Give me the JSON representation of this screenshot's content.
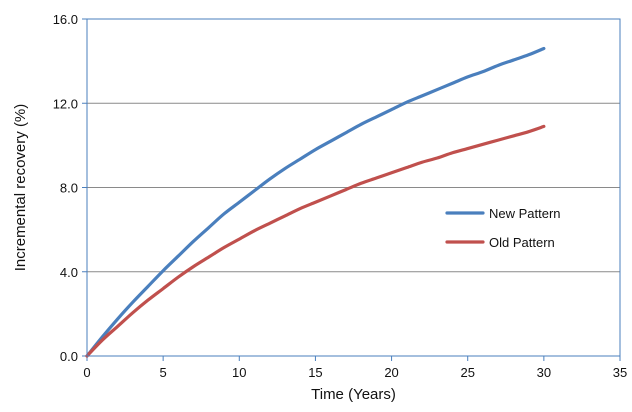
{
  "chart_data": {
    "type": "line",
    "title": "",
    "xlabel": "Time (Years)",
    "ylabel": "Incremental recovery (%)",
    "xlim": [
      0,
      35
    ],
    "ylim": [
      0,
      16
    ],
    "x_ticks": [
      "0",
      "5",
      "10",
      "15",
      "20",
      "25",
      "30",
      "35"
    ],
    "y_ticks": [
      "0.0",
      "4.0",
      "8.0",
      "12.0",
      "16.0"
    ],
    "grid": "horizontal",
    "legend_position": "right",
    "series": [
      {
        "name": "New Pattern",
        "color": "#4a7fbd",
        "x": [
          0,
          1,
          2,
          3,
          4,
          5,
          6,
          7,
          8,
          9,
          10,
          11,
          12,
          13,
          14,
          15,
          16,
          17,
          18,
          19,
          20,
          21,
          22,
          23,
          24,
          25,
          26,
          27,
          28,
          29,
          30
        ],
        "y": [
          0.0,
          0.9,
          1.75,
          2.55,
          3.3,
          4.05,
          4.75,
          5.45,
          6.1,
          6.75,
          7.3,
          7.85,
          8.4,
          8.9,
          9.35,
          9.8,
          10.2,
          10.6,
          11.0,
          11.35,
          11.7,
          12.05,
          12.35,
          12.65,
          12.95,
          13.25,
          13.5,
          13.8,
          14.05,
          14.3,
          14.6
        ]
      },
      {
        "name": "Old Pattern",
        "color": "#c0504d",
        "x": [
          0,
          1,
          2,
          3,
          4,
          5,
          6,
          7,
          8,
          9,
          10,
          11,
          12,
          13,
          14,
          15,
          16,
          17,
          18,
          19,
          20,
          21,
          22,
          23,
          24,
          25,
          26,
          27,
          28,
          29,
          30
        ],
        "y": [
          0.0,
          0.75,
          1.4,
          2.05,
          2.65,
          3.2,
          3.75,
          4.25,
          4.7,
          5.15,
          5.55,
          5.95,
          6.3,
          6.65,
          7.0,
          7.3,
          7.6,
          7.9,
          8.2,
          8.45,
          8.7,
          8.95,
          9.2,
          9.4,
          9.65,
          9.85,
          10.05,
          10.25,
          10.45,
          10.65,
          10.9
        ]
      }
    ]
  }
}
